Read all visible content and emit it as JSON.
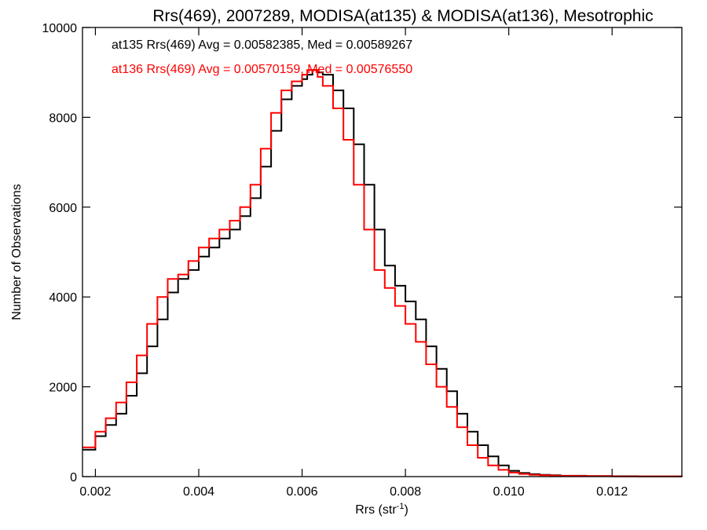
{
  "chart_data": {
    "type": "line",
    "title": "Rrs(469), 2007289, MODISA(at135) & MODISA(at136), Mesotrophic",
    "xlabel": "Rrs (str",
    "xlabel_sup": "-1",
    "xlabel_tail": ")",
    "ylabel": "Number of Observations",
    "xlim": [
      0.00175,
      0.01335
    ],
    "ylim": [
      0,
      10000
    ],
    "x_ticks": [
      0.002,
      0.004,
      0.006,
      0.008,
      0.01,
      0.012
    ],
    "x_tick_labels": [
      "0.002",
      "0.004",
      "0.006",
      "0.008",
      "0.010",
      "0.012"
    ],
    "y_ticks": [
      0,
      2000,
      4000,
      6000,
      8000,
      10000
    ],
    "y_tick_labels": [
      "0",
      "2000",
      "4000",
      "6000",
      "8000",
      "10000"
    ],
    "grid": false,
    "step": true,
    "series": [
      {
        "color": "#000000",
        "annotation": "at135 Rrs(469) Avg = 0.00582385, Med = 0.00589267",
        "x": [
          0.00175,
          0.002,
          0.0022,
          0.0024,
          0.0026,
          0.0028,
          0.003,
          0.0032,
          0.0034,
          0.0036,
          0.0038,
          0.004,
          0.0042,
          0.0044,
          0.0046,
          0.0048,
          0.005,
          0.0052,
          0.0054,
          0.0056,
          0.0058,
          0.006,
          0.0061,
          0.0062,
          0.0063,
          0.0064,
          0.0066,
          0.0068,
          0.007,
          0.0072,
          0.0074,
          0.0076,
          0.0078,
          0.008,
          0.0082,
          0.0084,
          0.0086,
          0.0088,
          0.009,
          0.0092,
          0.0094,
          0.0096,
          0.0098,
          0.01,
          0.0102,
          0.0104,
          0.0106,
          0.0108,
          0.011,
          0.0115,
          0.012,
          0.0125,
          0.013,
          0.01335
        ],
        "y": [
          600,
          900,
          1150,
          1400,
          1800,
          2300,
          2900,
          3500,
          4100,
          4400,
          4600,
          4900,
          5100,
          5300,
          5500,
          5800,
          6200,
          6900,
          7700,
          8400,
          8700,
          8850,
          8950,
          9050,
          9000,
          8950,
          8600,
          8200,
          7400,
          6500,
          5500,
          4700,
          4250,
          3900,
          3500,
          2900,
          2400,
          1900,
          1400,
          1000,
          700,
          450,
          250,
          130,
          80,
          55,
          40,
          30,
          20,
          12,
          8,
          5,
          3,
          2
        ]
      },
      {
        "color": "#ff0000",
        "annotation": "at136 Rrs(469) Avg = 0.00570159, Med = 0.00576550",
        "x": [
          0.00175,
          0.002,
          0.0022,
          0.0024,
          0.0026,
          0.0028,
          0.003,
          0.0032,
          0.0034,
          0.0036,
          0.0038,
          0.004,
          0.0042,
          0.0044,
          0.0046,
          0.0048,
          0.005,
          0.0052,
          0.0054,
          0.0056,
          0.0058,
          0.006,
          0.0061,
          0.0062,
          0.0063,
          0.0064,
          0.0066,
          0.0068,
          0.007,
          0.0072,
          0.0074,
          0.0076,
          0.0078,
          0.008,
          0.0082,
          0.0084,
          0.0086,
          0.0088,
          0.009,
          0.0092,
          0.0094,
          0.0096,
          0.0098,
          0.01,
          0.0102,
          0.0104,
          0.0106,
          0.0108,
          0.011,
          0.0115,
          0.012,
          0.0125,
          0.013,
          0.01335
        ],
        "y": [
          650,
          1000,
          1300,
          1650,
          2100,
          2700,
          3400,
          4000,
          4400,
          4500,
          4800,
          5100,
          5300,
          5500,
          5700,
          6000,
          6500,
          7300,
          8100,
          8600,
          8800,
          8950,
          9050,
          9050,
          8900,
          8700,
          8200,
          7500,
          6500,
          5500,
          4600,
          4200,
          3800,
          3400,
          3000,
          2500,
          2000,
          1550,
          1100,
          700,
          420,
          250,
          150,
          90,
          60,
          40,
          30,
          22,
          15,
          10,
          6,
          4,
          3,
          2
        ]
      }
    ]
  }
}
